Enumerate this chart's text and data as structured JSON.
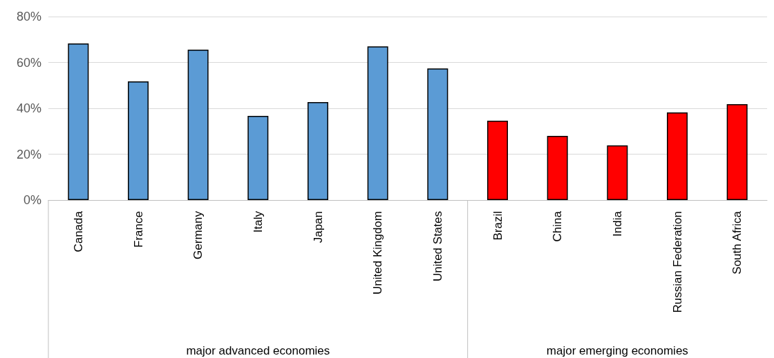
{
  "chart_data": {
    "type": "bar",
    "categories": [
      "Canada",
      "France",
      "Germany",
      "Italy",
      "Japan",
      "United Kingdom",
      "United States",
      "Brazil",
      "China",
      "India",
      "Russian Federation",
      "South Africa"
    ],
    "values": [
      68.3,
      51.7,
      65.6,
      36.7,
      42.7,
      67,
      57.4,
      34.6,
      28,
      23.8,
      38.2,
      41.8
    ],
    "colors": [
      "#5b9bd5",
      "#5b9bd5",
      "#5b9bd5",
      "#5b9bd5",
      "#5b9bd5",
      "#5b9bd5",
      "#5b9bd5",
      "#ff0000",
      "#ff0000",
      "#ff0000",
      "#ff0000",
      "#ff0000"
    ],
    "ylim": [
      0,
      80
    ],
    "yticks": [
      {
        "value": 0,
        "label": "0%"
      },
      {
        "value": 20,
        "label": "20%"
      },
      {
        "value": 40,
        "label": "40%"
      },
      {
        "value": 60,
        "label": "60%"
      },
      {
        "value": 80,
        "label": "80%"
      }
    ],
    "grid": "y",
    "annotations": [
      "major advanced economies",
      "major emerging economies"
    ]
  }
}
